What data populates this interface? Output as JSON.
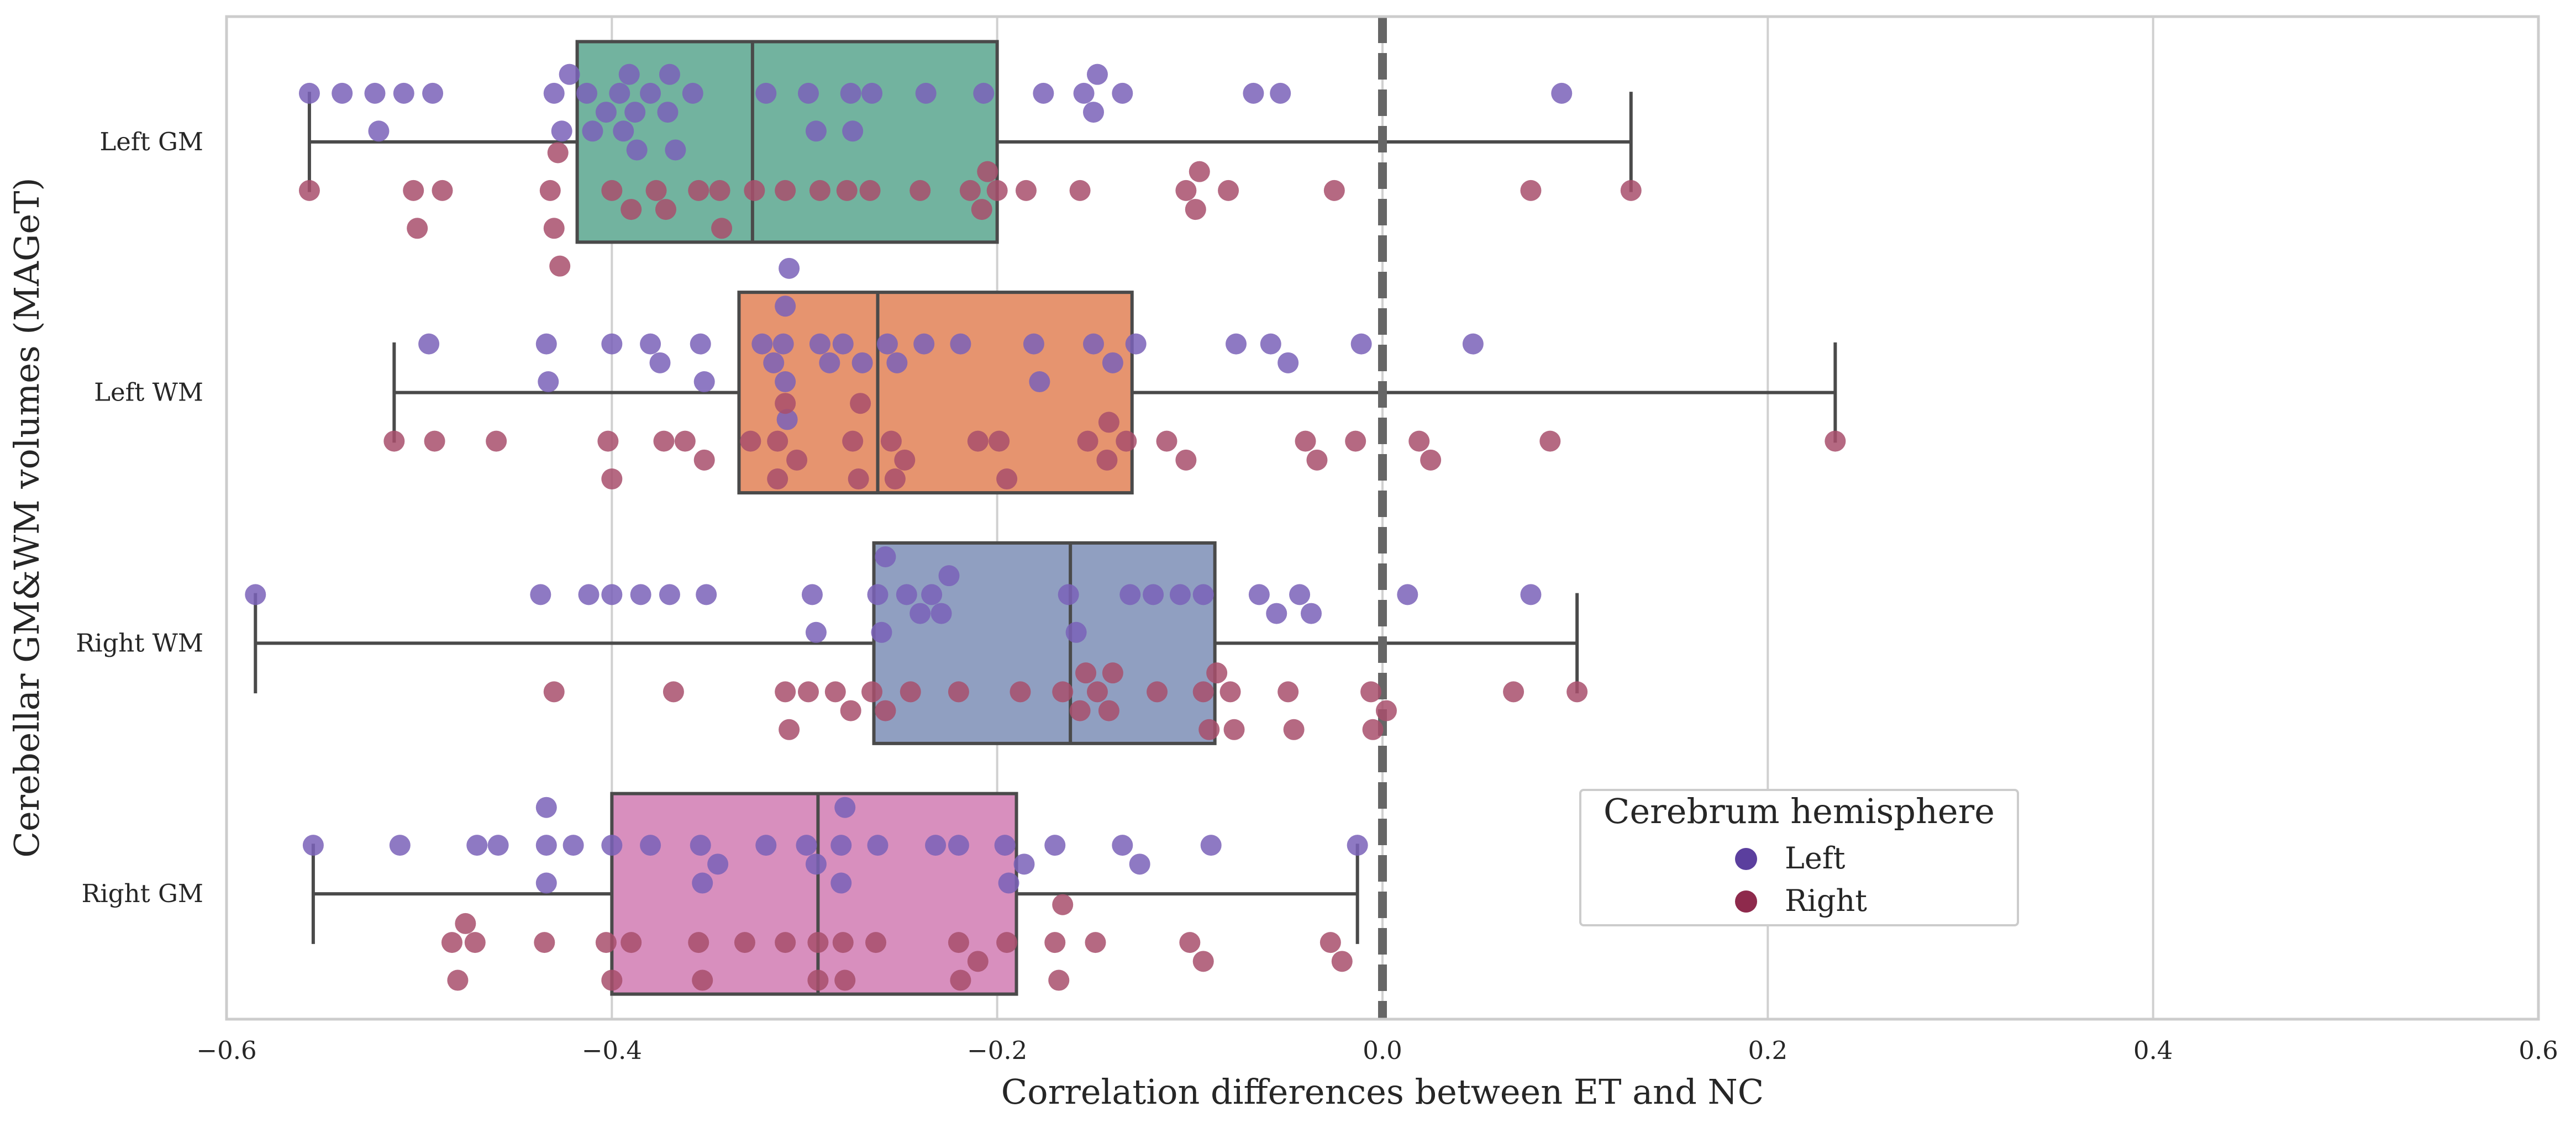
{
  "chart_data": {
    "type": "box-swarm",
    "orientation": "horizontal",
    "xlabel": "Correlation differences between ET and NC",
    "ylabel": "Cerebellar GM&WM volumes (MAGeT)",
    "xlim": [
      -0.6,
      0.6
    ],
    "xticks": [
      -0.6,
      -0.4,
      -0.2,
      0.0,
      0.2,
      0.4,
      0.6
    ],
    "xtick_labels": [
      "−0.6",
      "−0.4",
      "−0.2",
      "0.0",
      "0.2",
      "0.4",
      "0.6"
    ],
    "grid": true,
    "reference_line": {
      "x": 0.0,
      "style": "dashed"
    },
    "categories": [
      "Left GM",
      "Left WM",
      "Right WM",
      "Right GM"
    ],
    "boxes": [
      {
        "category": "Left GM",
        "color": "#72b39f",
        "whisker_low": -0.557,
        "q1": -0.418,
        "median": -0.327,
        "q3": -0.2,
        "whisker_high": 0.129
      },
      {
        "category": "Left WM",
        "color": "#e6946f",
        "whisker_low": -0.513,
        "q1": -0.334,
        "median": -0.262,
        "q3": -0.13,
        "whisker_high": 0.235
      },
      {
        "category": "Right WM",
        "color": "#909fc1",
        "whisker_low": -0.585,
        "q1": -0.264,
        "median": -0.162,
        "q3": -0.087,
        "whisker_high": 0.101
      },
      {
        "category": "Right GM",
        "color": "#d88fbe",
        "whisker_low": -0.555,
        "q1": -0.4,
        "median": -0.293,
        "q3": -0.19,
        "whisker_high": -0.013
      }
    ],
    "series": [
      {
        "name": "Left",
        "color": "#7a62b8",
        "points": [
          {
            "category": "Left GM",
            "values": [
              -0.557,
              -0.54,
              -0.523,
              -0.508,
              -0.493,
              -0.43,
              -0.422,
              -0.413,
              -0.403,
              -0.396,
              -0.388,
              -0.38,
              -0.37,
              -0.358,
              -0.32,
              -0.298,
              -0.275,
              -0.265,
              -0.237,
              -0.207,
              -0.176,
              -0.155,
              -0.148,
              -0.135,
              -0.067,
              -0.053,
              0.093,
              -0.371,
              -0.391,
              -0.387,
              -0.426,
              -0.521,
              -0.394,
              -0.276,
              -0.294,
              -0.15,
              -0.41,
              -0.367
            ]
          },
          {
            "category": "Left WM",
            "values": [
              -0.495,
              -0.433,
              -0.4,
              -0.38,
              -0.352,
              -0.322,
              -0.311,
              -0.292,
              -0.28,
              -0.27,
              -0.257,
              -0.238,
              -0.219,
              -0.181,
              -0.15,
              -0.14,
              -0.128,
              -0.076,
              -0.058,
              -0.011,
              0.047,
              -0.434,
              -0.375,
              -0.354,
              -0.316,
              -0.309,
              -0.287,
              -0.252,
              -0.178,
              -0.049,
              -0.31,
              -0.31,
              -0.308
            ]
          },
          {
            "category": "Right WM",
            "values": [
              -0.585,
              -0.437,
              -0.412,
              -0.4,
              -0.385,
              -0.37,
              -0.351,
              -0.296,
              -0.26,
              -0.24,
              -0.225,
              -0.163,
              -0.131,
              -0.119,
              -0.105,
              -0.093,
              -0.064,
              -0.055,
              -0.037,
              0.013,
              0.077,
              -0.294,
              -0.262,
              -0.229,
              -0.159,
              -0.043,
              -0.258,
              -0.247,
              -0.234
            ]
          },
          {
            "category": "Right GM",
            "values": [
              -0.555,
              -0.51,
              -0.47,
              -0.459,
              -0.434,
              -0.42,
              -0.4,
              -0.38,
              -0.354,
              -0.345,
              -0.32,
              -0.299,
              -0.281,
              -0.262,
              -0.232,
              -0.196,
              -0.17,
              -0.135,
              -0.089,
              -0.013,
              -0.434,
              -0.353,
              -0.294,
              -0.281,
              -0.22,
              -0.126,
              -0.194,
              -0.434,
              -0.279,
              -0.186
            ]
          }
        ]
      },
      {
        "name": "Right",
        "color": "#a84f6c",
        "points": [
          {
            "category": "Left GM",
            "values": [
              -0.557,
              -0.503,
              -0.488,
              -0.43,
              -0.4,
              -0.377,
              -0.355,
              -0.343,
              -0.31,
              -0.278,
              -0.266,
              -0.24,
              -0.214,
              -0.2,
              -0.185,
              -0.157,
              -0.102,
              -0.08,
              -0.025,
              0.077,
              0.129,
              -0.501,
              -0.432,
              -0.372,
              -0.344,
              -0.326,
              -0.095,
              -0.208,
              -0.428,
              -0.39,
              -0.292,
              -0.097,
              -0.205,
              -0.427
            ]
          },
          {
            "category": "Left WM",
            "values": [
              -0.513,
              -0.492,
              -0.46,
              -0.402,
              -0.373,
              -0.352,
              -0.328,
              -0.31,
              -0.275,
              -0.255,
              -0.21,
              -0.195,
              -0.153,
              -0.133,
              -0.112,
              -0.04,
              -0.014,
              0.025,
              0.087,
              0.235,
              -0.362,
              -0.314,
              -0.272,
              -0.248,
              -0.199,
              -0.143,
              -0.102,
              0.019,
              -0.034,
              -0.4,
              -0.314,
              -0.304,
              -0.271,
              -0.253,
              -0.142
            ]
          },
          {
            "category": "Right WM",
            "values": [
              -0.43,
              -0.368,
              -0.31,
              -0.298,
              -0.284,
              -0.265,
              -0.245,
              -0.22,
              -0.188,
              -0.157,
              -0.142,
              -0.117,
              -0.093,
              -0.077,
              -0.046,
              -0.006,
              0.068,
              0.101,
              -0.276,
              -0.258,
              -0.086,
              -0.049,
              0.002,
              -0.154,
              -0.148,
              -0.14,
              -0.079,
              -0.005,
              -0.09,
              -0.166,
              -0.308
            ]
          },
          {
            "category": "Right GM",
            "values": [
              -0.48,
              -0.435,
              -0.403,
              -0.39,
              -0.355,
              -0.331,
              -0.31,
              -0.293,
              -0.28,
              -0.263,
              -0.22,
              -0.21,
              -0.195,
              -0.17,
              -0.149,
              -0.1,
              -0.027,
              -0.483,
              -0.4,
              -0.353,
              -0.293,
              -0.279,
              -0.166,
              -0.093,
              -0.021,
              -0.476,
              -0.471,
              -0.168,
              -0.219
            ]
          }
        ]
      }
    ],
    "legend": {
      "title": "Cerebrum hemisphere",
      "entries": [
        "Left",
        "Right"
      ],
      "placement": "lower-right"
    }
  }
}
